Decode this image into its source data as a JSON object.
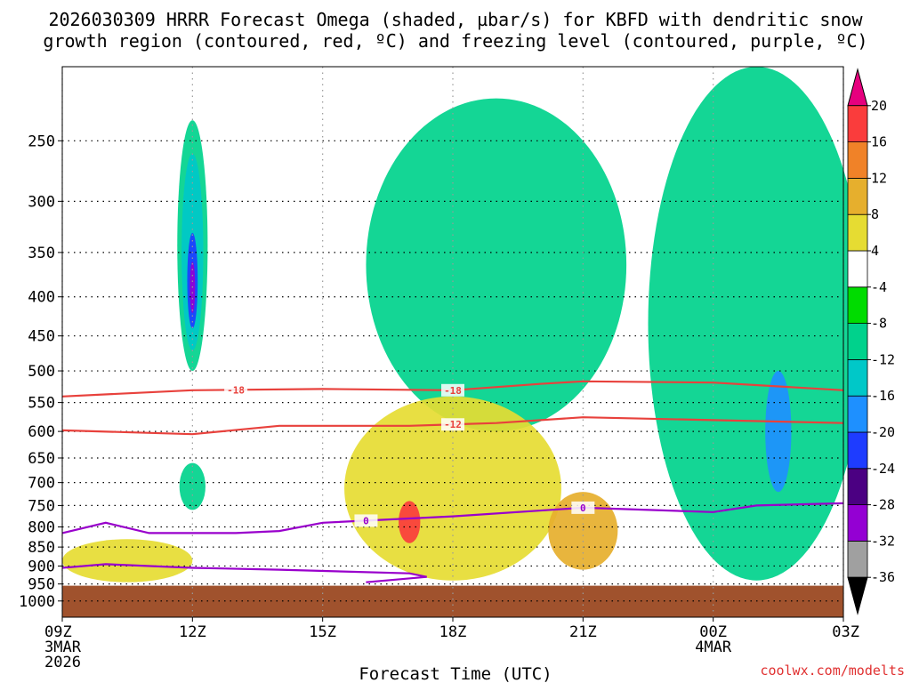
{
  "title_line1": "2026030309 HRRR Forecast Omega (shaded, µbar/s) for KBFD with dendritic snow",
  "title_line2": "growth region (contoured, red, ºC) and freezing level (contoured, purple, ºC)",
  "credit": "coolwx.com/modelts",
  "chart_data": {
    "type": "heatmap",
    "xlabel": "Forecast Time (UTC)",
    "x_ticks": [
      {
        "hour": 0,
        "label": "09Z",
        "sub1": "3MAR",
        "sub2": "2026"
      },
      {
        "hour": 3,
        "label": "12Z"
      },
      {
        "hour": 6,
        "label": "15Z"
      },
      {
        "hour": 9,
        "label": "18Z"
      },
      {
        "hour": 12,
        "label": "21Z"
      },
      {
        "hour": 15,
        "label": "00Z",
        "sub1": "4MAR"
      },
      {
        "hour": 18,
        "label": "03Z"
      }
    ],
    "y_ticks": [
      250,
      300,
      350,
      400,
      450,
      500,
      550,
      600,
      650,
      700,
      750,
      800,
      850,
      900,
      950,
      1000
    ],
    "y_range_hPa": [
      200,
      1050
    ],
    "ground_level_hPa": 955,
    "ground_color": "#a0522d",
    "colorbar": {
      "levels": [
        -36,
        -32,
        -28,
        -24,
        -20,
        -16,
        -12,
        -8,
        -4,
        4,
        8,
        12,
        16,
        20
      ],
      "colors": [
        "#000000",
        "#a0a0a0",
        "#9400d3",
        "#4b0082",
        "#1e3cff",
        "#1e90ff",
        "#00c8c8",
        "#00d28c",
        "#00dc00",
        "#ffffff",
        "#e6dc32",
        "#e6af2d",
        "#f08228",
        "#fa3c3c",
        "#e6007e"
      ]
    },
    "omega_regions": [
      {
        "name": "12Z ascent column",
        "value": -8,
        "center": [
          3.0,
          360
        ],
        "half_width_hr": 0.35,
        "top_hPa": 235,
        "bottom_hPa": 500
      },
      {
        "name": "12Z ascent core",
        "value": -12,
        "center": [
          3.0,
          360
        ],
        "half_width_hr": 0.25,
        "top_hPa": 260,
        "bottom_hPa": 470
      },
      {
        "name": "12Z ascent max",
        "value": -20,
        "center": [
          3.0,
          380
        ],
        "half_width_hr": 0.12,
        "top_hPa": 330,
        "bottom_hPa": 440
      },
      {
        "name": "12Z ascent peak",
        "value": -28,
        "center": [
          3.0,
          390
        ],
        "half_width_hr": 0.05,
        "top_hPa": 360,
        "bottom_hPa": 420
      },
      {
        "name": "12Z low ascent",
        "value": -8,
        "center": [
          3.0,
          710
        ],
        "half_width_hr": 0.3,
        "top_hPa": 660,
        "bottom_hPa": 760
      },
      {
        "name": "mid-day ascent",
        "value": -8,
        "center": [
          10.0,
          430
        ],
        "half_width_hr": 3.0,
        "top_hPa": 220,
        "bottom_hPa": 600
      },
      {
        "name": "evening ascent",
        "value": -8,
        "center": [
          16.0,
          450
        ],
        "half_width_hr": 2.5,
        "top_hPa": 200,
        "bottom_hPa": 940
      },
      {
        "name": "evening core",
        "value": -16,
        "center": [
          16.5,
          620
        ],
        "half_width_hr": 0.3,
        "top_hPa": 500,
        "bottom_hPa": 720
      },
      {
        "name": "afternoon descent",
        "value": 8,
        "center": [
          9.0,
          740
        ],
        "half_width_hr": 2.5,
        "top_hPa": 540,
        "bottom_hPa": 940
      },
      {
        "name": "afternoon descent max",
        "value": 20,
        "center": [
          8.0,
          790
        ],
        "half_width_hr": 0.25,
        "top_hPa": 740,
        "bottom_hPa": 840
      },
      {
        "name": "morning descent",
        "value": 8,
        "center": [
          1.5,
          880
        ],
        "half_width_hr": 1.5,
        "top_hPa": 830,
        "bottom_hPa": 945
      },
      {
        "name": "21Z descent",
        "value": 12,
        "center": [
          12.0,
          800
        ],
        "half_width_hr": 0.8,
        "top_hPa": 720,
        "bottom_hPa": 910
      }
    ],
    "contours": [
      {
        "name": "DGZ top",
        "label": "-18",
        "color": "#e8413c",
        "label_hour": [
          4.0,
          9.0
        ],
        "points": [
          [
            0,
            540
          ],
          [
            3,
            530
          ],
          [
            6,
            528
          ],
          [
            9,
            530
          ],
          [
            11,
            520
          ],
          [
            12,
            516
          ],
          [
            15,
            518
          ],
          [
            18,
            530
          ]
        ]
      },
      {
        "name": "DGZ bottom",
        "label": "-12",
        "color": "#e8413c",
        "label_hour": [
          9.0
        ],
        "points": [
          [
            0,
            598
          ],
          [
            3,
            605
          ],
          [
            5,
            590
          ],
          [
            8,
            590
          ],
          [
            10,
            585
          ],
          [
            12,
            575
          ],
          [
            15,
            580
          ],
          [
            18,
            585
          ]
        ]
      },
      {
        "name": "freezing level",
        "label": "0",
        "color": "#9900cc",
        "label_hour": [
          7.0,
          12.0
        ],
        "points": [
          [
            0,
            815
          ],
          [
            1,
            790
          ],
          [
            2,
            815
          ],
          [
            4,
            815
          ],
          [
            5,
            810
          ],
          [
            6,
            790
          ],
          [
            9,
            775
          ],
          [
            12,
            755
          ],
          [
            15,
            765
          ],
          [
            16,
            750
          ],
          [
            18,
            745
          ]
        ]
      },
      {
        "name": "low freezing level",
        "label": "0",
        "color": "#9900cc",
        "label_hour": [],
        "points": [
          [
            0,
            905
          ],
          [
            1,
            895
          ],
          [
            3,
            905
          ],
          [
            5,
            910
          ],
          [
            8,
            920
          ],
          [
            8.4,
            930
          ],
          [
            7.0,
            945
          ]
        ]
      }
    ]
  }
}
